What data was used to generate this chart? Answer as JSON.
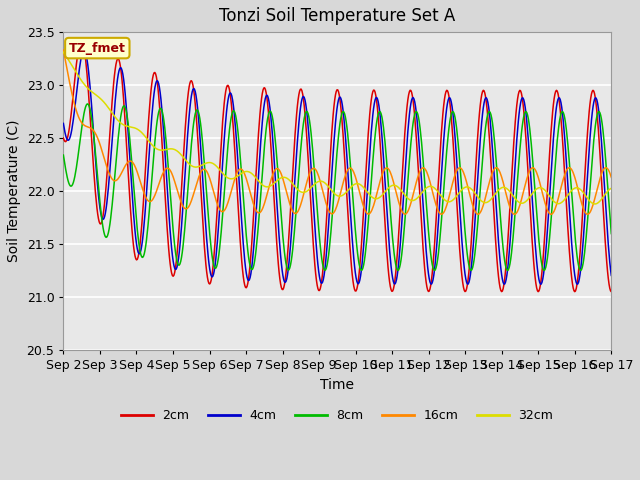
{
  "title": "Tonzi Soil Temperature Set A",
  "xlabel": "Time",
  "ylabel": "Soil Temperature (C)",
  "ylim": [
    20.5,
    23.5
  ],
  "xlim_days": [
    0,
    15
  ],
  "annotation": "TZ_fmet",
  "annotation_bg": "#ffffcc",
  "annotation_border": "#ccaa00",
  "annotation_text_color": "#990000",
  "fig_bg_color": "#d8d8d8",
  "plot_bg_color": "#e8e8e8",
  "grid_color": "#ffffff",
  "series": [
    {
      "label": "2cm",
      "color": "#dd0000"
    },
    {
      "label": "4cm",
      "color": "#0000cc"
    },
    {
      "label": "8cm",
      "color": "#00bb00"
    },
    {
      "label": "16cm",
      "color": "#ff8800"
    },
    {
      "label": "32cm",
      "color": "#dddd00"
    }
  ],
  "xtick_labels": [
    "Sep 2",
    "Sep 3",
    "Sep 4",
    "Sep 5",
    "Sep 6",
    "Sep 7",
    "Sep 8",
    "Sep 9",
    "Sep 10",
    "Sep 11",
    "Sep 12",
    "Sep 13",
    "Sep 14",
    "Sep 15",
    "Sep 16",
    "Sep 17"
  ],
  "xtick_positions": [
    0,
    1,
    2,
    3,
    4,
    5,
    6,
    7,
    8,
    9,
    10,
    11,
    12,
    13,
    14,
    15
  ],
  "ytick_values": [
    20.5,
    21.0,
    21.5,
    22.0,
    22.5,
    23.0,
    23.5
  ]
}
